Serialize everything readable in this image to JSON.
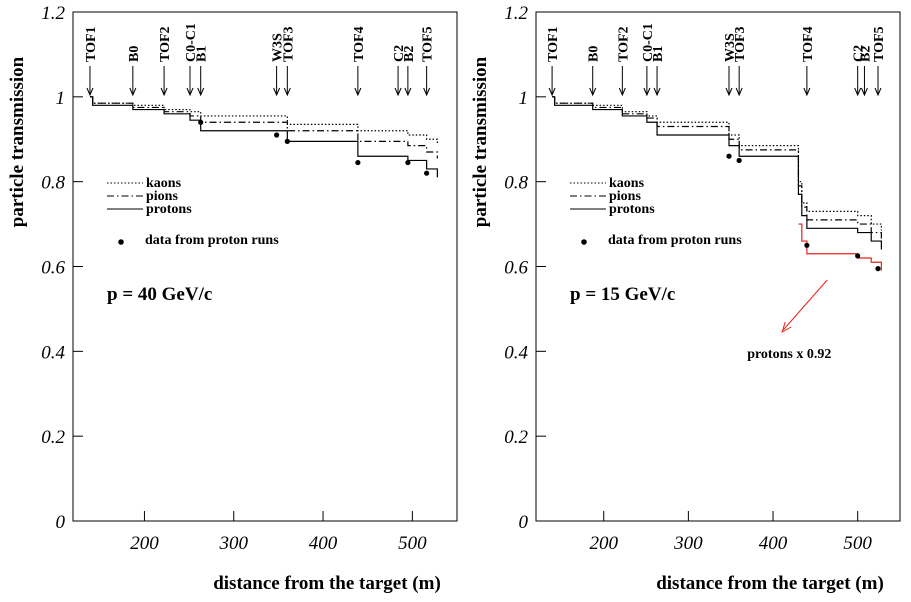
{
  "chart_data": [
    {
      "type": "step",
      "xlabel": "distance from the target (m)",
      "ylabel": "particle transmission",
      "xlim": [
        120,
        550
      ],
      "xticks": [
        200,
        300,
        400,
        500
      ],
      "ylim": [
        0,
        1.2
      ],
      "yticks": [
        0,
        0.2,
        0.4,
        0.6,
        0.8,
        1,
        1.2
      ],
      "annotation": "p = 40 GeV/c",
      "markers": [
        {
          "label": "TOF1",
          "x": 139
        },
        {
          "label": "B0",
          "x": 187
        },
        {
          "label": "TOF2",
          "x": 222
        },
        {
          "label": "C0-C1",
          "x": 251
        },
        {
          "label": "B1",
          "x": 263
        },
        {
          "label": "W3S",
          "x": 348
        },
        {
          "label": "TOF3",
          "x": 360
        },
        {
          "label": "TOF4",
          "x": 439
        },
        {
          "label": "C2",
          "x": 484
        },
        {
          "label": "B2",
          "x": 495
        },
        {
          "label": "TOF5",
          "x": 516
        }
      ],
      "series": [
        {
          "name": "kaons",
          "color": "#000000",
          "dash": "dotted",
          "x": [
            139,
            142,
            187,
            222,
            251,
            263,
            360,
            439,
            495,
            516,
            528
          ],
          "values": [
            1.0,
            0.985,
            0.98,
            0.97,
            0.965,
            0.955,
            0.935,
            0.92,
            0.91,
            0.9,
            0.89
          ]
        },
        {
          "name": "pions",
          "color": "#000000",
          "dash": "dashdot",
          "x": [
            139,
            142,
            187,
            222,
            251,
            263,
            360,
            439,
            495,
            516,
            528
          ],
          "values": [
            1.0,
            0.985,
            0.975,
            0.965,
            0.955,
            0.94,
            0.92,
            0.895,
            0.885,
            0.87,
            0.855
          ]
        },
        {
          "name": "protons",
          "color": "#000000",
          "dash": "solid",
          "x": [
            139,
            142,
            187,
            222,
            251,
            263,
            360,
            439,
            495,
            516,
            528
          ],
          "values": [
            1.0,
            0.98,
            0.97,
            0.96,
            0.945,
            0.92,
            0.895,
            0.86,
            0.85,
            0.83,
            0.81
          ]
        }
      ],
      "points": {
        "name": "data from proton runs",
        "x": [
          263,
          348,
          360,
          439,
          495,
          516
        ],
        "values": [
          0.94,
          0.91,
          0.895,
          0.845,
          0.845,
          0.82
        ]
      }
    },
    {
      "type": "step",
      "xlabel": "distance from the target (m)",
      "ylabel": "particle transmission",
      "xlim": [
        120,
        550
      ],
      "xticks": [
        200,
        300,
        400,
        500
      ],
      "ylim": [
        0,
        1.2
      ],
      "yticks": [
        0,
        0.2,
        0.4,
        0.6,
        0.8,
        1,
        1.2
      ],
      "annotation": "p = 15 GeV/c",
      "markers": [
        {
          "label": "TOF1",
          "x": 139
        },
        {
          "label": "B0",
          "x": 187
        },
        {
          "label": "TOF2",
          "x": 222
        },
        {
          "label": "C0-C1",
          "x": 251
        },
        {
          "label": "B1",
          "x": 263
        },
        {
          "label": "W3S",
          "x": 348
        },
        {
          "label": "TOF3",
          "x": 360
        },
        {
          "label": "TOF4",
          "x": 440
        },
        {
          "label": "C2",
          "x": 500
        },
        {
          "label": "B2",
          "x": 508
        },
        {
          "label": "TOF5",
          "x": 524
        }
      ],
      "series": [
        {
          "name": "kaons",
          "color": "#000000",
          "dash": "dotted",
          "x": [
            139,
            142,
            187,
            222,
            251,
            263,
            348,
            360,
            430,
            434,
            440,
            500,
            516,
            528
          ],
          "values": [
            1.0,
            0.985,
            0.98,
            0.965,
            0.955,
            0.94,
            0.91,
            0.885,
            0.8,
            0.75,
            0.73,
            0.72,
            0.7,
            0.685
          ]
        },
        {
          "name": "pions",
          "color": "#000000",
          "dash": "dashdot",
          "x": [
            139,
            142,
            187,
            222,
            251,
            263,
            348,
            360,
            430,
            434,
            440,
            500,
            516,
            528
          ],
          "values": [
            1.0,
            0.985,
            0.975,
            0.96,
            0.95,
            0.93,
            0.9,
            0.875,
            0.79,
            0.74,
            0.71,
            0.7,
            0.68,
            0.665
          ]
        },
        {
          "name": "protons",
          "color": "#000000",
          "dash": "solid",
          "x": [
            139,
            142,
            187,
            222,
            251,
            263,
            348,
            360,
            430,
            434,
            440,
            500,
            516,
            528
          ],
          "values": [
            1.0,
            0.98,
            0.97,
            0.955,
            0.94,
            0.91,
            0.885,
            0.86,
            0.77,
            0.72,
            0.69,
            0.68,
            0.66,
            0.64
          ]
        },
        {
          "name": "protons x 0.92",
          "color": "#e8241c",
          "dash": "solid",
          "annotated": true,
          "x": [
            430,
            434,
            440,
            500,
            516,
            528
          ],
          "values": [
            0.7,
            0.66,
            0.63,
            0.62,
            0.61,
            0.59
          ]
        }
      ],
      "points": {
        "name": "data from proton runs",
        "x": [
          348,
          360,
          440,
          500,
          524
        ],
        "values": [
          0.86,
          0.85,
          0.65,
          0.625,
          0.595
        ]
      }
    }
  ]
}
